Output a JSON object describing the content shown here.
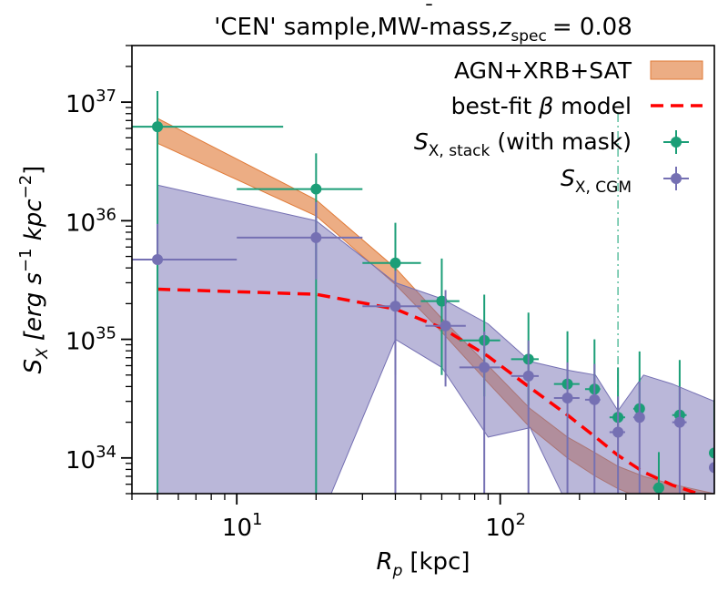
{
  "chart_data": {
    "type": "scatter",
    "title": "'CEN' sample,MW-mass,",
    "title_math": {
      "symbol": "z",
      "sub": "spec",
      "value": "= 0.08"
    },
    "xlabel": {
      "var": "R",
      "sub": "p",
      "unit": "[kpc]"
    },
    "ylabel": {
      "var": "S",
      "sub": "X",
      "units": "[erg s",
      "e1": "−1",
      "k": " kpc",
      "e2": "−2",
      "close": "]"
    },
    "xscale": "log",
    "yscale": "log",
    "xlim": [
      4.0,
      650.0
    ],
    "ylim": [
      5e+33,
      3e+37
    ],
    "xticks": [
      {
        "value": 10,
        "base": "10",
        "exp": "1"
      },
      {
        "value": 100,
        "base": "10",
        "exp": "2"
      }
    ],
    "yticks": [
      {
        "value": 1e+34,
        "base": "10",
        "exp": "34"
      },
      {
        "value": 1e+35,
        "base": "10",
        "exp": "35"
      },
      {
        "value": 1e+36,
        "base": "10",
        "exp": "36"
      },
      {
        "value": 1e+37,
        "base": "10",
        "exp": "37"
      }
    ],
    "vline": {
      "x": 280,
      "color": "#5dbfa0"
    },
    "legend": {
      "position": "top-right",
      "entries": [
        {
          "key": "agn",
          "label": "AGN+XRB+SAT"
        },
        {
          "key": "beta",
          "label_pre": "best-fit ",
          "label_sym": "β",
          "label_post": " model"
        },
        {
          "key": "stack",
          "var": "S",
          "sub": "X, stack",
          "post": " (with mask)"
        },
        {
          "key": "cgm",
          "var": "S",
          "sub": "X, CGM",
          "post": ""
        }
      ]
    },
    "series": [
      {
        "name": "AGN+XRB+SAT",
        "kind": "band",
        "color": "#e07b39",
        "opacity": 0.62,
        "x": [
          5,
          20,
          40,
          60,
          90,
          130,
          180,
          230,
          280,
          350,
          450,
          650
        ],
        "lower": [
          4.5e+36,
          1.1e+36,
          2.9e+35,
          1.15e+35,
          4.3e+34,
          1.8e+34,
          1e+34,
          7e+33,
          5.5e+33,
          4.5e+33,
          4e+33,
          3.5e+33
        ],
        "upper": [
          7.3e+36,
          1.5e+36,
          4e+35,
          1.5e+35,
          6e+34,
          2.6e+34,
          1.5e+34,
          1.1e+34,
          8.5e+33,
          7e+33,
          6e+33,
          5e+33
        ]
      },
      {
        "name": "CGM uncertainty band",
        "kind": "band",
        "color": "#7570b3",
        "opacity": 0.5,
        "x": [
          5,
          20,
          40,
          60,
          90,
          130,
          180,
          230,
          280,
          350,
          450,
          650
        ],
        "lower": [
          1e+32,
          1e+32,
          1e+35,
          5.8e+34,
          1.5e+34,
          1.8e+34,
          4e+33,
          3e+33,
          3e+33,
          3e+33,
          3e+33,
          3e+33
        ],
        "upper": [
          2e+36,
          1e+36,
          3e+35,
          2.2e+35,
          1.35e+35,
          6.5e+34,
          5.5e+34,
          5e+34,
          2.5e+34,
          5e+34,
          4.2e+34,
          3e+34
        ]
      },
      {
        "name": "best-fit beta model",
        "kind": "line",
        "color": "#ff0000",
        "dash": "14 8",
        "x": [
          5,
          20,
          40,
          60,
          90,
          130,
          180,
          230,
          280,
          350,
          450,
          650
        ],
        "y": [
          2.65e+35,
          2.4e+35,
          1.8e+35,
          1.25e+35,
          7.2e+34,
          3.9e+34,
          2.3e+34,
          1.5e+34,
          1.05e+34,
          7.6e+33,
          5.9e+33,
          4.5e+33
        ]
      },
      {
        "name": "S_X,stack (with mask)",
        "kind": "errorbar",
        "color": "#1b9e77",
        "x": [
          5,
          20,
          40,
          60,
          87,
          128,
          180,
          228,
          280,
          338,
          400,
          480,
          650
        ],
        "xerr": [
          [
            1,
            10
          ],
          [
            10,
            10
          ],
          [
            10,
            10
          ],
          [
            10,
            10
          ],
          [
            17,
            13
          ],
          [
            18,
            12
          ],
          [
            20,
            20
          ],
          [
            18,
            12
          ],
          [
            20,
            18
          ],
          [
            18,
            12
          ],
          [
            20,
            10
          ],
          [
            30,
            30
          ],
          [
            30,
            0
          ]
        ],
        "y": [
          6.2e+36,
          1.85e+36,
          4.4e+35,
          2.1e+35,
          9.8e+34,
          6.8e+34,
          4.2e+34,
          3.8e+34,
          2.2e+34,
          2.6e+34,
          5.6e+33,
          2.3e+34,
          1.1e+34
        ],
        "yerr": [
          [
            6.2e+36,
            6.2e+36
          ],
          [
            1.85e+36,
            1.85e+36
          ],
          [
            3.9e+35,
            5.2e+35
          ],
          [
            1.6e+35,
            2.7e+35
          ],
          [
            6.5e+34,
            1.4e+35
          ],
          [
            4e+34,
            1e+35
          ],
          [
            5e+33,
            7.5e+34
          ],
          [
            5e+33,
            6.2e+34
          ],
          [
            5e+33,
            3.6e+34
          ],
          [
            5e+33,
            5.3e+34
          ],
          [
            5e+33,
            5.6e+33
          ],
          [
            5e+33,
            4.4e+34
          ],
          [
            5e+33,
            2e+34
          ]
        ]
      },
      {
        "name": "S_X,CGM",
        "kind": "errorbar",
        "color": "#7570b3",
        "x": [
          5,
          20,
          40,
          62,
          87,
          128,
          180,
          228,
          280,
          338,
          480,
          650
        ],
        "xerr": [
          [
            1,
            5
          ],
          [
            10,
            10
          ],
          [
            10,
            10
          ],
          [
            10,
            12
          ],
          [
            17,
            13
          ],
          [
            18,
            12
          ],
          [
            20,
            20
          ],
          [
            18,
            12
          ],
          [
            20,
            18
          ],
          [
            18,
            12
          ],
          [
            30,
            30
          ],
          [
            30,
            0
          ]
        ],
        "y": [
          4.7e+35,
          7.2e+35,
          1.9e+35,
          1.3e+35,
          5.8e+34,
          4.9e+34,
          3.2e+34,
          3.1e+34,
          1.65e+34,
          2.2e+34,
          2e+34,
          8.3e+33
        ],
        "yerr": [
          [
            5e+33,
            4.7e+35
          ],
          [
            4e+35,
            7.2e+35
          ],
          [
            1.9e+35,
            1.9e+35
          ],
          [
            9e+34,
            1.3e+35
          ],
          [
            5.8e+34,
            5.8e+34
          ],
          [
            4.9e+34,
            4.9e+34
          ],
          [
            3.2e+34,
            3.2e+34
          ],
          [
            3.1e+34,
            3.1e+34
          ],
          [
            1.65e+34,
            1.65e+34
          ],
          [
            2.2e+34,
            2.2e+34
          ],
          [
            2e+34,
            2e+34
          ],
          [
            8.3e+33,
            8.3e+33
          ]
        ]
      }
    ]
  }
}
